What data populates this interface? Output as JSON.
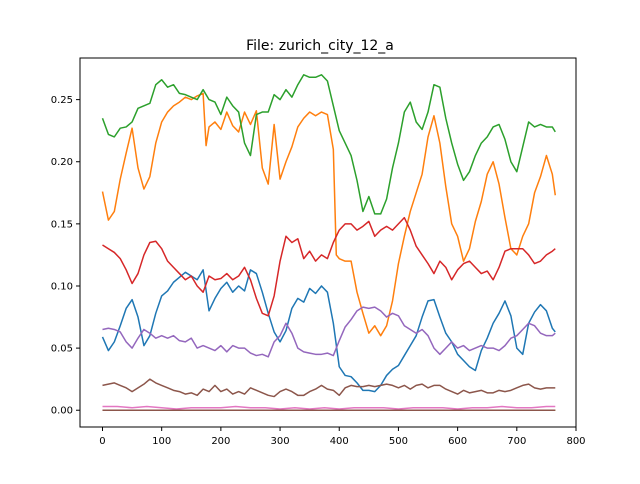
{
  "chart_data": {
    "type": "line",
    "title": "File: zurich_city_12_a",
    "xlabel": "",
    "ylabel": "",
    "xlim": [
      -38,
      800
    ],
    "ylim": [
      -0.0135,
      0.2835
    ],
    "x_ticks": [
      0,
      100,
      200,
      300,
      400,
      500,
      600,
      700,
      800
    ],
    "y_ticks": [
      0.0,
      0.05,
      0.1,
      0.15,
      0.2,
      0.25
    ],
    "y_tick_labels": [
      "0.00",
      "0.05",
      "0.10",
      "0.15",
      "0.20",
      "0.25"
    ],
    "grid": false,
    "legend": "none",
    "series": [
      {
        "color": "#1f77b4",
        "x": [
          0,
          10,
          20,
          30,
          40,
          50,
          60,
          70,
          80,
          90,
          100,
          110,
          120,
          130,
          140,
          150,
          160,
          170,
          180,
          190,
          200,
          210,
          220,
          230,
          240,
          250,
          260,
          270,
          280,
          290,
          300,
          310,
          320,
          330,
          340,
          350,
          360,
          370,
          380,
          390,
          400,
          410,
          420,
          430,
          440,
          450,
          460,
          470,
          480,
          490,
          500,
          510,
          520,
          530,
          540,
          550,
          560,
          570,
          580,
          590,
          600,
          610,
          620,
          630,
          640,
          650,
          660,
          670,
          680,
          690,
          700,
          710,
          720,
          730,
          740,
          750,
          760,
          765
        ],
        "values": [
          0.059,
          0.048,
          0.055,
          0.068,
          0.082,
          0.089,
          0.075,
          0.052,
          0.06,
          0.078,
          0.092,
          0.096,
          0.103,
          0.107,
          0.111,
          0.108,
          0.105,
          0.113,
          0.08,
          0.09,
          0.098,
          0.103,
          0.095,
          0.1,
          0.096,
          0.113,
          0.11,
          0.095,
          0.078,
          0.063,
          0.055,
          0.064,
          0.082,
          0.09,
          0.087,
          0.098,
          0.094,
          0.1,
          0.095,
          0.07,
          0.035,
          0.028,
          0.027,
          0.022,
          0.016,
          0.016,
          0.015,
          0.02,
          0.028,
          0.033,
          0.036,
          0.044,
          0.052,
          0.06,
          0.075,
          0.088,
          0.089,
          0.075,
          0.062,
          0.055,
          0.045,
          0.04,
          0.035,
          0.032,
          0.048,
          0.058,
          0.07,
          0.078,
          0.088,
          0.076,
          0.05,
          0.045,
          0.07,
          0.079,
          0.085,
          0.08,
          0.066,
          0.063
        ]
      },
      {
        "color": "#ff7f0e",
        "x": [
          0,
          10,
          20,
          30,
          40,
          50,
          60,
          70,
          80,
          90,
          100,
          110,
          120,
          130,
          140,
          150,
          160,
          170,
          175,
          180,
          190,
          200,
          210,
          220,
          230,
          240,
          250,
          260,
          270,
          280,
          290,
          300,
          310,
          320,
          330,
          340,
          350,
          360,
          370,
          380,
          390,
          395,
          400,
          410,
          420,
          430,
          440,
          450,
          460,
          470,
          480,
          490,
          500,
          510,
          520,
          530,
          540,
          550,
          560,
          570,
          580,
          590,
          600,
          610,
          620,
          630,
          640,
          650,
          660,
          670,
          680,
          690,
          700,
          710,
          720,
          730,
          740,
          750,
          760,
          765
        ],
        "values": [
          0.176,
          0.153,
          0.16,
          0.186,
          0.207,
          0.227,
          0.195,
          0.178,
          0.188,
          0.215,
          0.232,
          0.24,
          0.245,
          0.248,
          0.252,
          0.25,
          0.253,
          0.255,
          0.213,
          0.228,
          0.232,
          0.226,
          0.24,
          0.229,
          0.224,
          0.24,
          0.23,
          0.241,
          0.195,
          0.182,
          0.23,
          0.186,
          0.2,
          0.212,
          0.228,
          0.235,
          0.24,
          0.237,
          0.24,
          0.238,
          0.21,
          0.125,
          0.122,
          0.12,
          0.12,
          0.095,
          0.078,
          0.062,
          0.068,
          0.06,
          0.068,
          0.088,
          0.118,
          0.14,
          0.16,
          0.175,
          0.19,
          0.22,
          0.237,
          0.215,
          0.18,
          0.15,
          0.14,
          0.12,
          0.13,
          0.152,
          0.168,
          0.19,
          0.2,
          0.182,
          0.155,
          0.13,
          0.125,
          0.14,
          0.15,
          0.175,
          0.188,
          0.205,
          0.19,
          0.173
        ]
      },
      {
        "color": "#2ca02c",
        "x": [
          0,
          10,
          20,
          30,
          40,
          50,
          60,
          70,
          80,
          90,
          100,
          110,
          120,
          130,
          140,
          150,
          160,
          170,
          180,
          190,
          200,
          210,
          220,
          230,
          240,
          250,
          260,
          270,
          280,
          290,
          300,
          310,
          320,
          330,
          340,
          350,
          360,
          370,
          380,
          390,
          400,
          410,
          420,
          430,
          440,
          450,
          460,
          470,
          480,
          490,
          500,
          510,
          520,
          530,
          540,
          550,
          560,
          570,
          580,
          590,
          600,
          610,
          620,
          630,
          640,
          650,
          660,
          670,
          680,
          690,
          700,
          710,
          720,
          730,
          740,
          750,
          760,
          765
        ],
        "values": [
          0.235,
          0.222,
          0.22,
          0.227,
          0.228,
          0.232,
          0.243,
          0.245,
          0.247,
          0.262,
          0.266,
          0.26,
          0.262,
          0.255,
          0.254,
          0.252,
          0.25,
          0.258,
          0.25,
          0.248,
          0.238,
          0.252,
          0.245,
          0.24,
          0.215,
          0.205,
          0.238,
          0.24,
          0.24,
          0.254,
          0.25,
          0.258,
          0.252,
          0.262,
          0.27,
          0.268,
          0.268,
          0.27,
          0.265,
          0.245,
          0.225,
          0.215,
          0.205,
          0.185,
          0.16,
          0.172,
          0.158,
          0.158,
          0.17,
          0.195,
          0.215,
          0.24,
          0.248,
          0.232,
          0.226,
          0.24,
          0.262,
          0.26,
          0.235,
          0.215,
          0.198,
          0.185,
          0.192,
          0.205,
          0.215,
          0.22,
          0.228,
          0.23,
          0.218,
          0.2,
          0.192,
          0.212,
          0.232,
          0.228,
          0.23,
          0.228,
          0.228,
          0.224
        ]
      },
      {
        "color": "#d62728",
        "x": [
          0,
          10,
          20,
          30,
          40,
          50,
          60,
          70,
          80,
          90,
          100,
          110,
          120,
          130,
          140,
          150,
          160,
          170,
          180,
          190,
          200,
          210,
          220,
          230,
          240,
          250,
          260,
          270,
          280,
          290,
          300,
          310,
          320,
          330,
          340,
          350,
          360,
          370,
          380,
          390,
          400,
          410,
          420,
          430,
          440,
          450,
          460,
          470,
          480,
          490,
          500,
          510,
          520,
          530,
          540,
          550,
          560,
          570,
          580,
          590,
          600,
          610,
          620,
          630,
          640,
          650,
          660,
          670,
          680,
          690,
          700,
          710,
          720,
          730,
          740,
          750,
          760,
          765
        ],
        "values": [
          0.133,
          0.13,
          0.127,
          0.122,
          0.113,
          0.102,
          0.11,
          0.125,
          0.135,
          0.136,
          0.13,
          0.12,
          0.115,
          0.11,
          0.105,
          0.108,
          0.1,
          0.095,
          0.108,
          0.105,
          0.106,
          0.11,
          0.105,
          0.108,
          0.115,
          0.105,
          0.09,
          0.078,
          0.076,
          0.092,
          0.12,
          0.14,
          0.135,
          0.138,
          0.122,
          0.128,
          0.12,
          0.125,
          0.122,
          0.135,
          0.145,
          0.15,
          0.15,
          0.145,
          0.148,
          0.152,
          0.14,
          0.145,
          0.148,
          0.145,
          0.15,
          0.155,
          0.145,
          0.132,
          0.125,
          0.118,
          0.11,
          0.12,
          0.115,
          0.105,
          0.113,
          0.118,
          0.12,
          0.115,
          0.11,
          0.112,
          0.105,
          0.115,
          0.128,
          0.13,
          0.13,
          0.13,
          0.125,
          0.118,
          0.12,
          0.125,
          0.128,
          0.13
        ]
      },
      {
        "color": "#9467bd",
        "x": [
          0,
          10,
          20,
          30,
          40,
          50,
          60,
          70,
          80,
          90,
          100,
          110,
          120,
          130,
          140,
          150,
          160,
          170,
          180,
          190,
          200,
          210,
          220,
          230,
          240,
          250,
          260,
          270,
          280,
          290,
          300,
          310,
          320,
          330,
          340,
          350,
          360,
          370,
          380,
          390,
          400,
          410,
          420,
          430,
          440,
          450,
          460,
          470,
          480,
          490,
          500,
          510,
          520,
          530,
          540,
          550,
          560,
          570,
          580,
          590,
          600,
          610,
          620,
          630,
          640,
          650,
          660,
          670,
          680,
          690,
          700,
          710,
          720,
          730,
          740,
          750,
          760,
          765
        ],
        "values": [
          0.065,
          0.066,
          0.065,
          0.063,
          0.055,
          0.05,
          0.058,
          0.065,
          0.062,
          0.058,
          0.06,
          0.058,
          0.06,
          0.056,
          0.055,
          0.058,
          0.05,
          0.052,
          0.05,
          0.048,
          0.052,
          0.047,
          0.052,
          0.05,
          0.05,
          0.046,
          0.044,
          0.045,
          0.043,
          0.055,
          0.06,
          0.07,
          0.062,
          0.05,
          0.047,
          0.046,
          0.045,
          0.045,
          0.046,
          0.044,
          0.056,
          0.067,
          0.073,
          0.08,
          0.083,
          0.082,
          0.083,
          0.08,
          0.075,
          0.078,
          0.076,
          0.068,
          0.065,
          0.062,
          0.065,
          0.06,
          0.05,
          0.045,
          0.05,
          0.055,
          0.05,
          0.052,
          0.048,
          0.05,
          0.052,
          0.05,
          0.05,
          0.048,
          0.052,
          0.058,
          0.06,
          0.065,
          0.07,
          0.068,
          0.062,
          0.06,
          0.06,
          0.062
        ]
      },
      {
        "color": "#8c564b",
        "x": [
          0,
          10,
          20,
          30,
          40,
          50,
          60,
          70,
          80,
          90,
          100,
          110,
          120,
          130,
          140,
          150,
          160,
          170,
          180,
          190,
          200,
          210,
          220,
          230,
          240,
          250,
          260,
          270,
          280,
          290,
          300,
          310,
          320,
          330,
          340,
          350,
          360,
          370,
          380,
          390,
          400,
          410,
          420,
          430,
          440,
          450,
          460,
          470,
          480,
          490,
          500,
          510,
          520,
          530,
          540,
          550,
          560,
          570,
          580,
          590,
          600,
          610,
          620,
          630,
          640,
          650,
          660,
          670,
          680,
          690,
          700,
          710,
          720,
          730,
          740,
          750,
          760,
          765
        ],
        "values": [
          0.02,
          0.021,
          0.022,
          0.02,
          0.018,
          0.015,
          0.018,
          0.021,
          0.025,
          0.022,
          0.02,
          0.018,
          0.016,
          0.015,
          0.013,
          0.014,
          0.012,
          0.017,
          0.015,
          0.02,
          0.015,
          0.017,
          0.013,
          0.015,
          0.013,
          0.018,
          0.016,
          0.014,
          0.012,
          0.011,
          0.015,
          0.017,
          0.015,
          0.012,
          0.012,
          0.015,
          0.017,
          0.02,
          0.017,
          0.016,
          0.012,
          0.018,
          0.02,
          0.019,
          0.019,
          0.02,
          0.019,
          0.02,
          0.021,
          0.02,
          0.018,
          0.02,
          0.017,
          0.02,
          0.021,
          0.018,
          0.02,
          0.02,
          0.017,
          0.015,
          0.013,
          0.016,
          0.014,
          0.015,
          0.016,
          0.014,
          0.014,
          0.016,
          0.015,
          0.016,
          0.018,
          0.02,
          0.021,
          0.018,
          0.017,
          0.018,
          0.018,
          0.018
        ]
      },
      {
        "color": "#e377c2",
        "x": [
          0,
          25,
          50,
          75,
          100,
          125,
          150,
          175,
          200,
          225,
          250,
          275,
          300,
          325,
          350,
          375,
          400,
          425,
          450,
          475,
          500,
          525,
          550,
          575,
          600,
          625,
          650,
          675,
          700,
          725,
          750,
          765
        ],
        "values": [
          0.003,
          0.003,
          0.002,
          0.003,
          0.002,
          0.001,
          0.002,
          0.002,
          0.002,
          0.003,
          0.002,
          0.002,
          0.001,
          0.002,
          0.001,
          0.002,
          0.001,
          0.002,
          0.002,
          0.002,
          0.001,
          0.002,
          0.002,
          0.002,
          0.001,
          0.002,
          0.002,
          0.003,
          0.002,
          0.002,
          0.003,
          0.003
        ]
      },
      {
        "color": "#7f7f7f",
        "x": [
          0,
          100,
          200,
          300,
          400,
          500,
          600,
          700,
          765
        ],
        "values": [
          0.0,
          0.0,
          0.0,
          0.0,
          0.0,
          0.0,
          0.0,
          0.0,
          0.0
        ]
      },
      {
        "color": "#bcbd22",
        "x": [
          0,
          100,
          200,
          300,
          400,
          500,
          600,
          700,
          765
        ],
        "values": [
          0.0,
          0.0,
          0.0,
          0.0,
          0.0,
          0.0,
          0.0,
          0.0,
          0.0
        ]
      },
      {
        "color": "#8c564b",
        "x": [
          0,
          100,
          200,
          300,
          400,
          500,
          600,
          700,
          765
        ],
        "values": [
          0.0,
          0.0,
          0.0,
          0.0,
          0.0,
          0.0,
          0.0,
          0.0,
          0.0
        ]
      }
    ]
  }
}
